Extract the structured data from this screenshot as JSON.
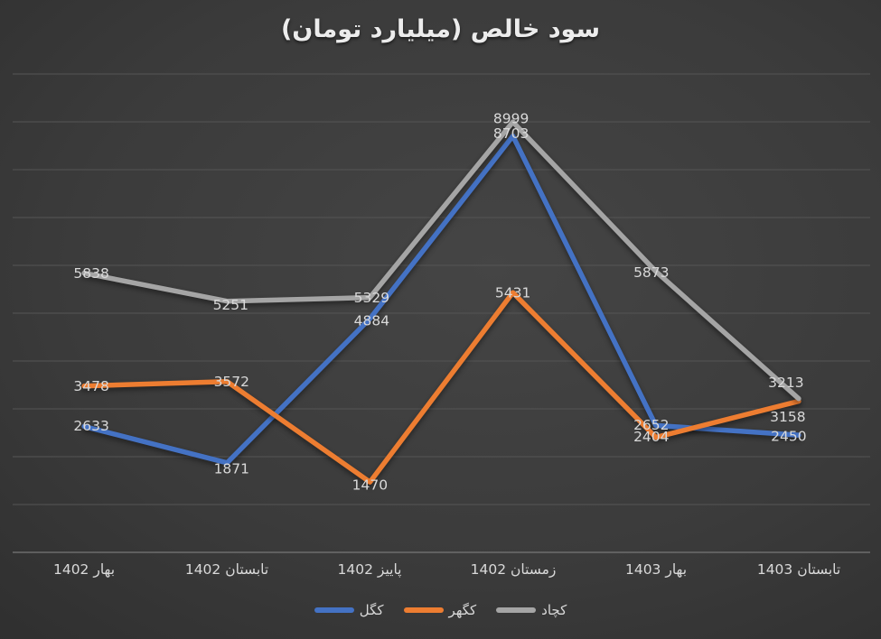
{
  "chart_data": {
    "type": "line",
    "title": "سود خالص (میلیارد تومان)",
    "categories": [
      "بهار 1402",
      "تابستان 1402",
      "پاییز 1402",
      "زمستان 1402",
      "بهار 1403",
      "تابستان 1403"
    ],
    "series": [
      {
        "id": "kgol",
        "name": "کگل",
        "color": "#4472C4",
        "values": [
          2633,
          1871,
          4884,
          8703,
          2652,
          2450
        ]
      },
      {
        "id": "kgohar",
        "name": "کگهر",
        "color": "#ED7D31",
        "values": [
          3478,
          3572,
          1470,
          5431,
          2404,
          3158
        ]
      },
      {
        "id": "kchad",
        "name": "کچاد",
        "color": "#A5A5A5",
        "values": [
          5838,
          5251,
          5329,
          8999,
          5873,
          3213
        ]
      }
    ],
    "xlabel": "",
    "ylabel": "",
    "ylim": [
      0,
      10000
    ],
    "gridline_step": 1000,
    "grid": true,
    "y_axis_tick_labels_visible": false,
    "data_labels": true,
    "legend_position": "bottom"
  },
  "colors": {
    "background_center": "#454545",
    "background_edge": "#222222",
    "gridline": "#555555",
    "axis_line": "#787878",
    "label_text": "#d9d9d9",
    "title_text": "#ececec"
  }
}
